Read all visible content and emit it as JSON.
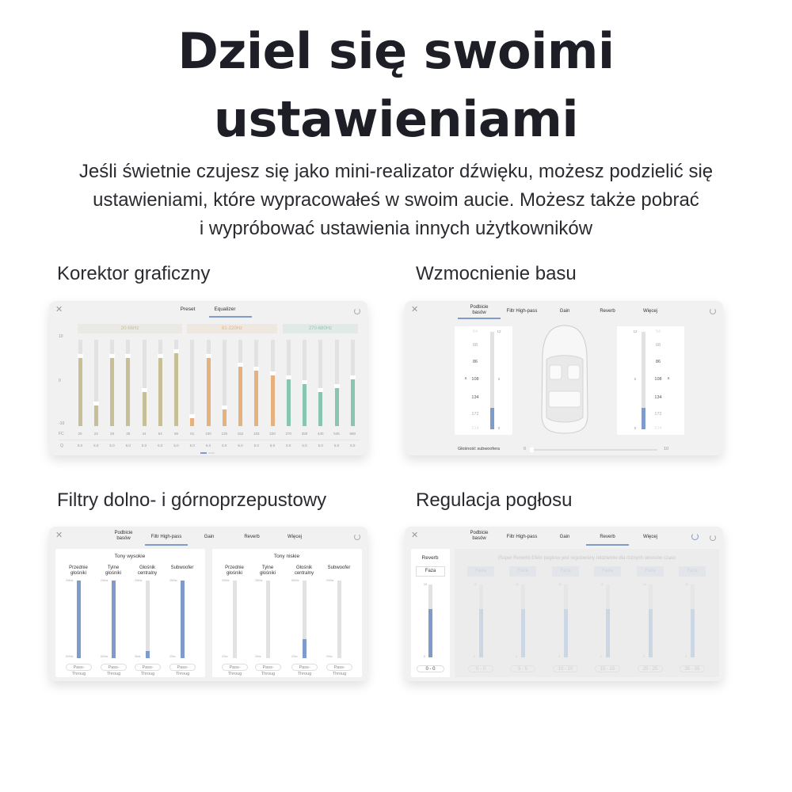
{
  "title": {
    "line1": "Dziel się swoimi",
    "line2": "ustawieniami"
  },
  "subtitle": [
    "Jeśli świetnie czujesz się jako mini-realizator dźwięku, możesz podzielić się",
    "ustawieniami, które wypracowałeś w swoim aucie. Możesz także pobrać",
    "i wypróbować ustawienia innych użytkowników"
  ],
  "sections": {
    "eq": "Korektor graficzny",
    "bass": "Wzmocnienie basu",
    "filters": "Filtry dolno- i górnoprzepustowy",
    "reverb": "Regulacja pogłosu"
  },
  "tabs": [
    "Podbicie basów",
    "Filtr High-pass",
    "Gain",
    "Reverb",
    "Więcej"
  ],
  "eq": {
    "tabs": [
      "Preset",
      "Equalizer"
    ],
    "active_tab": "Equalizer",
    "bands": [
      {
        "label": "20-66Hz",
        "color": "#c7bf98"
      },
      {
        "label": "81-220Hz",
        "color": "#e5b17f"
      },
      {
        "label": "270-680Hz",
        "color": "#88c6b2"
      }
    ],
    "y_ticks": [
      "10",
      "0",
      "-10"
    ],
    "ylim": [
      -10,
      10
    ],
    "fc_label": "FC",
    "q_label": "Q",
    "fc": [
      "20",
      "24",
      "29",
      "36",
      "44",
      "54",
      "66",
      "81",
      "100",
      "125",
      "152",
      "183",
      "220",
      "270",
      "350",
      "440",
      "545",
      "680"
    ],
    "q": [
      "5.0",
      "5.0",
      "5.0",
      "5.0",
      "5.0",
      "5.0",
      "5.0",
      "5.0",
      "5.0",
      "5.0",
      "5.0",
      "5.0",
      "5.0",
      "5.0",
      "5.0",
      "5.0",
      "5.0",
      "5.0"
    ],
    "gains": [
      6,
      -5,
      6,
      6,
      -2,
      6,
      7,
      -8,
      6,
      -6,
      4,
      3,
      2,
      1,
      0,
      -2,
      -1,
      1
    ],
    "band_of_bar": [
      0,
      0,
      0,
      0,
      0,
      0,
      0,
      1,
      1,
      1,
      1,
      1,
      1,
      2,
      2,
      2,
      2,
      2
    ],
    "page": 1,
    "pages": 2
  },
  "bass": {
    "active_tab": "Podbicie basów",
    "freqs": [
      "54",
      "68",
      "86",
      "108",
      "134",
      "172",
      "214"
    ],
    "selected_freq": "108",
    "marker": "a",
    "gain_ticks": [
      "12",
      "6",
      "0"
    ],
    "left_level": 0.22,
    "right_level": 0.22,
    "sub_volume_label": "Głośność subwoofera",
    "sub_min": "0",
    "sub_max": "10",
    "sub_volume": 0,
    "accent": "#7d9ccc"
  },
  "filters": {
    "active_tab": "Filtr High-pass",
    "groups": [
      {
        "title": "Tony wysokie",
        "columns": [
          {
            "name": "Przednie głośniki",
            "top": "20khz",
            "bottom": "500hz",
            "level": 1.0,
            "button": "Pass-Throug"
          },
          {
            "name": "Tylne głośniki",
            "top": "20khz",
            "bottom": "500hz",
            "level": 1.0,
            "button": "Pass-Throug"
          },
          {
            "name": "Głośnik centralny",
            "top": "20khz",
            "bottom": "3khz",
            "level": 0.09,
            "button": "Pass-Throug"
          },
          {
            "name": "Subwoofer",
            "top": "250hz",
            "bottom": "20hz",
            "level": 1.0,
            "button": "Pass-Throug"
          }
        ]
      },
      {
        "title": "Tony niskie",
        "columns": [
          {
            "name": "Przednie głośniki",
            "top": "250hz",
            "bottom": "20hz",
            "level": 0,
            "button": "Pass-Throug"
          },
          {
            "name": "Tylne głośniki",
            "top": "250hz",
            "bottom": "20hz",
            "level": 0,
            "button": "Pass-Throug"
          },
          {
            "name": "Głośnik centralny",
            "top": "500hz",
            "bottom": "20hz",
            "level": 0.24,
            "button": "Pass-Throug"
          },
          {
            "name": "Subwoofer",
            "top": "200hz",
            "bottom": "20hz",
            "level": 0,
            "button": "Pass-Throug"
          }
        ]
      }
    ]
  },
  "reverb": {
    "active_tab": "Reverb",
    "main": {
      "title": "Reverb",
      "phase": "Faza",
      "max": "10",
      "min": "0",
      "level": 0.66,
      "range": "0 - 0"
    },
    "note": "(Super Reverb) Efekt pogłosu jest regulowany oddzielnie dla różnych okresów czasu",
    "columns": [
      {
        "phase": "Faza",
        "range": "0 - 0",
        "level": 0.66
      },
      {
        "phase": "Faza",
        "range": "5 - 5",
        "level": 0.66
      },
      {
        "phase": "Faza",
        "range": "10 - 10",
        "level": 0.66
      },
      {
        "phase": "Faza",
        "range": "15 - 15",
        "level": 0.66
      },
      {
        "phase": "Faza",
        "range": "25 - 25",
        "level": 0.66
      },
      {
        "phase": "Faza",
        "range": "35 - 35",
        "level": 0.66
      }
    ],
    "max": "10",
    "min": "0"
  }
}
